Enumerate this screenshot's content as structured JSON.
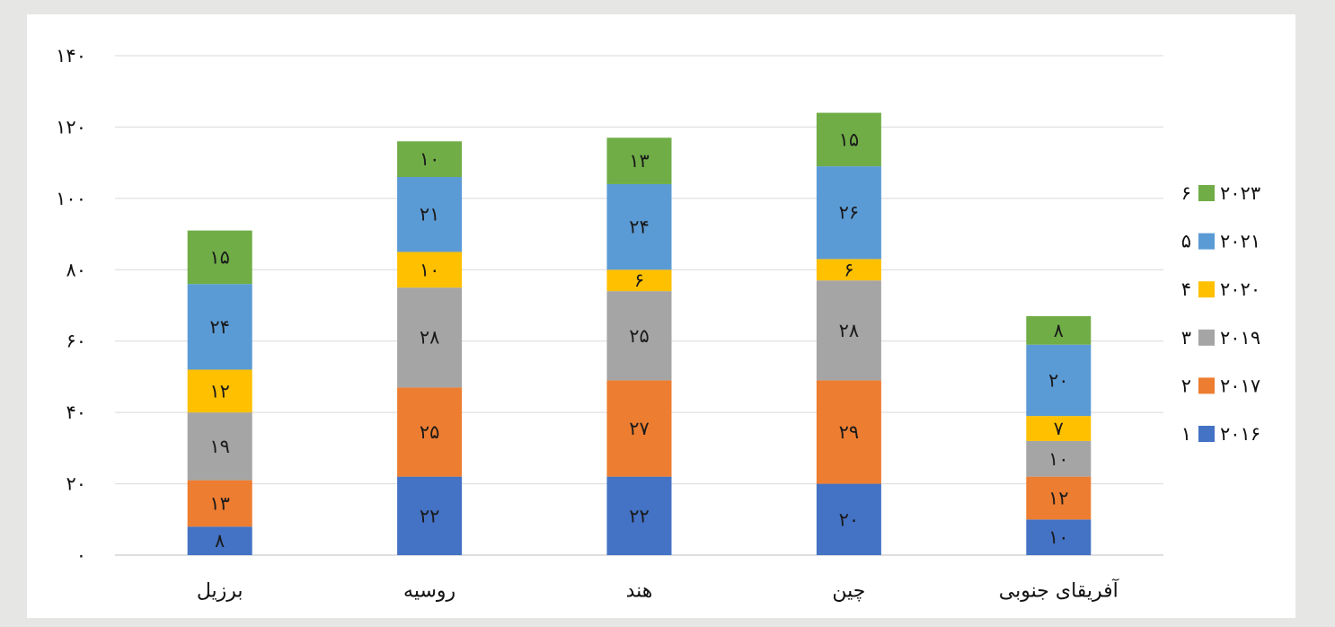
{
  "chart_data": {
    "type": "bar",
    "stacked": true,
    "categories": [
      "برزیل",
      "روسیه",
      "هند",
      "چین",
      "آفریقای جنوبی"
    ],
    "series": [
      {
        "name": "۲۰۱۶",
        "legend_number": "۱",
        "color": "#4472c4",
        "values": [
          8,
          22,
          22,
          20,
          10
        ],
        "labels": [
          "۸",
          "۲۲",
          "۲۲",
          "۲۰",
          "۱۰"
        ]
      },
      {
        "name": "۲۰۱۷",
        "legend_number": "۲",
        "color": "#ed7d31",
        "values": [
          13,
          25,
          27,
          29,
          12
        ],
        "labels": [
          "۱۳",
          "۲۵",
          "۲۷",
          "۲۹",
          "۱۲"
        ]
      },
      {
        "name": "۲۰۱۹",
        "legend_number": "۳",
        "color": "#a5a5a5",
        "values": [
          19,
          28,
          25,
          28,
          10
        ],
        "labels": [
          "۱۹",
          "۲۸",
          "۲۵",
          "۲۸",
          "۱۰"
        ]
      },
      {
        "name": "۲۰۲۰",
        "legend_number": "۴",
        "color": "#ffc000",
        "values": [
          12,
          10,
          6,
          6,
          7
        ],
        "labels": [
          "۱۲",
          "۱۰",
          "۶",
          "۶",
          "۷"
        ]
      },
      {
        "name": "۲۰۲۱",
        "legend_number": "۵",
        "color": "#5b9bd5",
        "values": [
          24,
          21,
          24,
          26,
          20
        ],
        "labels": [
          "۲۴",
          "۲۱",
          "۲۴",
          "۲۶",
          "۲۰"
        ]
      },
      {
        "name": "۲۰۲۳",
        "legend_number": "۶",
        "color": "#70ad47",
        "values": [
          15,
          10,
          13,
          15,
          8
        ],
        "labels": [
          "۱۵",
          "۱۰",
          "۱۳",
          "۱۵",
          "۸"
        ]
      }
    ],
    "ylim": [
      0,
      140
    ],
    "yticks": [
      0,
      20,
      40,
      60,
      80,
      100,
      120,
      140
    ],
    "ytick_labels": [
      "۰",
      "۲۰",
      "۴۰",
      "۶۰",
      "۸۰",
      "۱۰۰",
      "۱۲۰",
      "۱۴۰"
    ],
    "grid": true,
    "legend_position": "right",
    "title": "",
    "xlabel": "",
    "ylabel": ""
  }
}
